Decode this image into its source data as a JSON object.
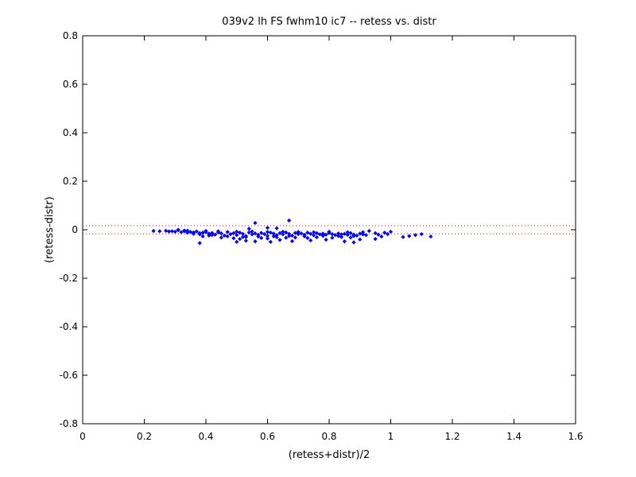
{
  "chart_data": {
    "type": "scatter",
    "title": "039v2 lh FS fwhm10 ic7 -- retess vs. distr",
    "xlabel": "(retess+distr)/2",
    "ylabel": "(retess-distr)",
    "xlim": [
      0,
      1.6
    ],
    "ylim": [
      -0.8,
      0.8
    ],
    "xticks": [
      0,
      0.2,
      0.4,
      0.6,
      0.8,
      1,
      1.2,
      1.4,
      1.6
    ],
    "xtick_labels": [
      "0",
      "0.2",
      "0.4",
      "0.6",
      "0.8",
      "1",
      "1.2",
      "1.4",
      "1.6"
    ],
    "yticks": [
      -0.8,
      -0.6,
      -0.4,
      -0.2,
      0,
      0.2,
      0.4,
      0.6,
      0.8
    ],
    "ytick_labels": [
      "-0.8",
      "-0.6",
      "-0.4",
      "-0.2",
      "0",
      "0.2",
      "0.4",
      "0.6",
      "0.8"
    ],
    "grid": false,
    "legend": "none",
    "reference_lines": [
      0.017,
      -0.017
    ],
    "colors": {
      "points": "#0000ff",
      "reference_lines": "#ff0000",
      "axes": "#000000"
    },
    "series": [
      {
        "marker": "diamond",
        "points": [
          [
            0.23,
            -0.005
          ],
          [
            0.25,
            -0.006
          ],
          [
            0.27,
            -0.004
          ],
          [
            0.28,
            -0.007
          ],
          [
            0.29,
            -0.006
          ],
          [
            0.3,
            -0.008
          ],
          [
            0.31,
            -0.002
          ],
          [
            0.32,
            -0.01
          ],
          [
            0.33,
            -0.006
          ],
          [
            0.34,
            -0.012
          ],
          [
            0.35,
            -0.009
          ],
          [
            0.36,
            -0.011
          ],
          [
            0.37,
            -0.007
          ],
          [
            0.38,
            -0.014
          ],
          [
            0.39,
            -0.012
          ],
          [
            0.4,
            -0.01
          ],
          [
            0.41,
            -0.016
          ],
          [
            0.42,
            -0.013
          ],
          [
            0.43,
            -0.02
          ],
          [
            0.44,
            -0.011
          ],
          [
            0.45,
            -0.015
          ],
          [
            0.46,
            -0.024
          ],
          [
            0.47,
            -0.009
          ],
          [
            0.48,
            -0.018
          ],
          [
            0.49,
            -0.014
          ],
          [
            0.5,
            -0.022
          ],
          [
            0.51,
            -0.012
          ],
          [
            0.52,
            -0.017
          ],
          [
            0.53,
            -0.026
          ],
          [
            0.54,
            -0.011
          ],
          [
            0.55,
            -0.019
          ],
          [
            0.56,
            -0.015
          ],
          [
            0.57,
            -0.021
          ],
          [
            0.58,
            -0.013
          ],
          [
            0.59,
            -0.018
          ],
          [
            0.6,
            -0.025
          ],
          [
            0.61,
            -0.012
          ],
          [
            0.62,
            -0.016
          ],
          [
            0.63,
            -0.022
          ],
          [
            0.64,
            -0.014
          ],
          [
            0.65,
            -0.019
          ],
          [
            0.66,
            -0.011
          ],
          [
            0.67,
            -0.017
          ],
          [
            0.68,
            -0.024
          ],
          [
            0.69,
            -0.013
          ],
          [
            0.7,
            -0.018
          ],
          [
            0.71,
            -0.015
          ],
          [
            0.72,
            -0.021
          ],
          [
            0.73,
            -0.012
          ],
          [
            0.74,
            -0.017
          ],
          [
            0.75,
            -0.023
          ],
          [
            0.76,
            -0.014
          ],
          [
            0.77,
            -0.019
          ],
          [
            0.78,
            -0.016
          ],
          [
            0.79,
            -0.02
          ],
          [
            0.8,
            -0.013
          ],
          [
            0.81,
            -0.018
          ],
          [
            0.82,
            -0.022
          ],
          [
            0.83,
            -0.015
          ],
          [
            0.84,
            -0.019
          ],
          [
            0.85,
            -0.017
          ],
          [
            0.86,
            -0.021
          ],
          [
            0.87,
            -0.014
          ],
          [
            0.88,
            -0.02
          ],
          [
            0.89,
            -0.024
          ],
          [
            0.9,
            -0.016
          ],
          [
            0.91,
            -0.019
          ],
          [
            0.92,
            -0.022
          ],
          [
            0.34,
            -0.004
          ],
          [
            0.36,
            -0.017
          ],
          [
            0.38,
            -0.019
          ],
          [
            0.4,
            -0.005
          ],
          [
            0.42,
            -0.022
          ],
          [
            0.44,
            -0.006
          ],
          [
            0.47,
            -0.027
          ],
          [
            0.5,
            -0.008
          ],
          [
            0.52,
            -0.03
          ],
          [
            0.55,
            -0.007
          ],
          [
            0.57,
            -0.028
          ],
          [
            0.6,
            -0.009
          ],
          [
            0.62,
            -0.027
          ],
          [
            0.65,
            -0.008
          ],
          [
            0.67,
            -0.026
          ],
          [
            0.7,
            -0.009
          ],
          [
            0.72,
            -0.027
          ],
          [
            0.75,
            -0.01
          ],
          [
            0.78,
            -0.025
          ],
          [
            0.8,
            -0.008
          ],
          [
            0.83,
            -0.026
          ],
          [
            0.86,
            -0.01
          ],
          [
            0.88,
            -0.026
          ],
          [
            0.91,
            -0.01
          ],
          [
            0.31,
            0.0
          ],
          [
            0.33,
            -0.003
          ],
          [
            0.39,
            -0.027
          ],
          [
            0.41,
            -0.024
          ],
          [
            0.45,
            -0.032
          ],
          [
            0.49,
            -0.035
          ],
          [
            0.51,
            -0.038
          ],
          [
            0.53,
            -0.03
          ],
          [
            0.58,
            -0.034
          ],
          [
            0.6,
            -0.036
          ],
          [
            0.63,
            -0.031
          ],
          [
            0.66,
            -0.033
          ],
          [
            0.69,
            -0.032
          ],
          [
            0.73,
            -0.034
          ],
          [
            0.76,
            -0.031
          ],
          [
            0.81,
            -0.033
          ],
          [
            0.84,
            -0.03
          ],
          [
            0.87,
            -0.032
          ],
          [
            0.38,
            -0.055
          ],
          [
            0.5,
            -0.05
          ],
          [
            0.53,
            -0.045
          ],
          [
            0.56,
            -0.048
          ],
          [
            0.61,
            -0.05
          ],
          [
            0.64,
            -0.042
          ],
          [
            0.68,
            -0.047
          ],
          [
            0.74,
            -0.044
          ],
          [
            0.79,
            -0.041
          ],
          [
            0.85,
            -0.048
          ],
          [
            0.88,
            -0.052
          ],
          [
            0.9,
            -0.04
          ],
          [
            0.95,
            -0.038
          ],
          [
            0.97,
            -0.028
          ],
          [
            0.56,
            0.028
          ],
          [
            0.67,
            0.038
          ],
          [
            0.6,
            0.008
          ],
          [
            0.63,
            0.006
          ],
          [
            0.54,
            0.004
          ],
          [
            0.93,
            -0.005
          ],
          [
            0.95,
            -0.014
          ],
          [
            0.96,
            -0.02
          ],
          [
            0.99,
            -0.018
          ],
          [
            1.0,
            -0.008
          ],
          [
            1.04,
            -0.03
          ],
          [
            1.06,
            -0.026
          ],
          [
            1.08,
            -0.022
          ],
          [
            1.1,
            -0.018
          ],
          [
            1.13,
            -0.028
          ],
          [
            0.98,
            -0.012
          ]
        ]
      }
    ]
  }
}
